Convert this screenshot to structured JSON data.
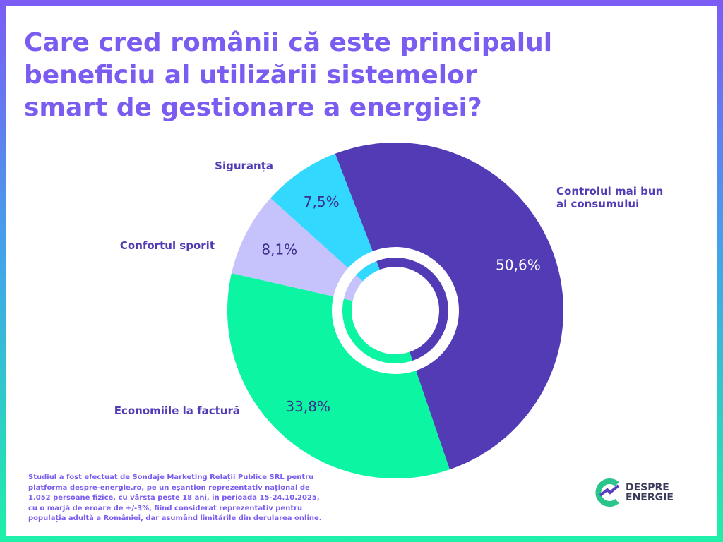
{
  "chart_data": {
    "type": "pie",
    "title": "Care cred românii că este principalul beneficiu al utilizării sistemelor smart de gestionare a energiei?",
    "categories": [
      "Controlul mai bun al consumului",
      "Economiile la factură",
      "Confortul sporit",
      "Siguranța"
    ],
    "values": [
      50.6,
      33.8,
      8.1,
      7.5
    ],
    "value_labels": [
      "50,6%",
      "33,8%",
      "8,1%",
      "7,5%"
    ],
    "colors": [
      "#523bb5",
      "#0cf5a2",
      "#c6c2fb",
      "#33d8ff"
    ]
  },
  "footer": {
    "note": "Studiul a fost efectuat de Sondaje Marketing Relații Publice SRL pentru platforma despre-energie.ro, pe un eșantion reprezentativ național de 1.052 persoane fizice, cu vârsta peste 18 ani, în perioada 15-24.10.2025, cu o marjă de eroare de +/-3%, fiind considerat reprezentativ pentru populația adultă a României, dar asumând limitările din derularea online.",
    "logo": [
      "DESPRE",
      "ENERGIE"
    ]
  }
}
